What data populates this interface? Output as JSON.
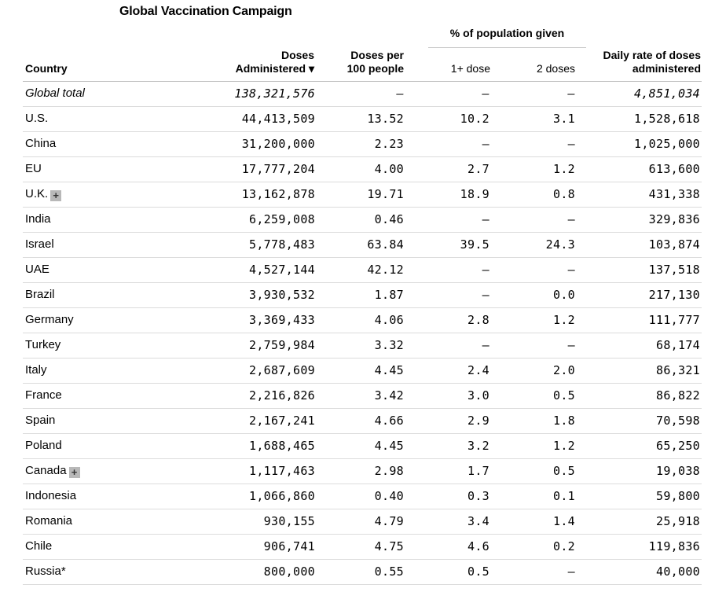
{
  "title": "Global Vaccination Campaign",
  "group_header": "% of population given",
  "columns": {
    "country": "Country",
    "doses_line1": "Doses",
    "doses_line2": "Administered ▾",
    "per100_line1": "Doses per",
    "per100_line2": "100 people",
    "one_dose": "1+ dose",
    "two_doses": "2 doses",
    "daily_line1": "Daily rate of doses",
    "daily_line2": "administered"
  },
  "expand_icon_glyph": "+",
  "rows": [
    {
      "country": "Global total",
      "doses": "138,321,576",
      "per100": "–",
      "one": "–",
      "two": "–",
      "daily": "4,851,034",
      "expandable": false
    },
    {
      "country": "U.S.",
      "doses": "44,413,509",
      "per100": "13.52",
      "one": "10.2",
      "two": "3.1",
      "daily": "1,528,618",
      "expandable": false
    },
    {
      "country": "China",
      "doses": "31,200,000",
      "per100": "2.23",
      "one": "–",
      "two": "–",
      "daily": "1,025,000",
      "expandable": false
    },
    {
      "country": "EU",
      "doses": "17,777,204",
      "per100": "4.00",
      "one": "2.7",
      "two": "1.2",
      "daily": "613,600",
      "expandable": false
    },
    {
      "country": "U.K.",
      "doses": "13,162,878",
      "per100": "19.71",
      "one": "18.9",
      "two": "0.8",
      "daily": "431,338",
      "expandable": true
    },
    {
      "country": "India",
      "doses": "6,259,008",
      "per100": "0.46",
      "one": "–",
      "two": "–",
      "daily": "329,836",
      "expandable": false
    },
    {
      "country": "Israel",
      "doses": "5,778,483",
      "per100": "63.84",
      "one": "39.5",
      "two": "24.3",
      "daily": "103,874",
      "expandable": false
    },
    {
      "country": "UAE",
      "doses": "4,527,144",
      "per100": "42.12",
      "one": "–",
      "two": "–",
      "daily": "137,518",
      "expandable": false
    },
    {
      "country": "Brazil",
      "doses": "3,930,532",
      "per100": "1.87",
      "one": "–",
      "two": "0.0",
      "daily": "217,130",
      "expandable": false
    },
    {
      "country": "Germany",
      "doses": "3,369,433",
      "per100": "4.06",
      "one": "2.8",
      "two": "1.2",
      "daily": "111,777",
      "expandable": false
    },
    {
      "country": "Turkey",
      "doses": "2,759,984",
      "per100": "3.32",
      "one": "–",
      "two": "–",
      "daily": "68,174",
      "expandable": false
    },
    {
      "country": "Italy",
      "doses": "2,687,609",
      "per100": "4.45",
      "one": "2.4",
      "two": "2.0",
      "daily": "86,321",
      "expandable": false
    },
    {
      "country": "France",
      "doses": "2,216,826",
      "per100": "3.42",
      "one": "3.0",
      "two": "0.5",
      "daily": "86,822",
      "expandable": false
    },
    {
      "country": "Spain",
      "doses": "2,167,241",
      "per100": "4.66",
      "one": "2.9",
      "two": "1.8",
      "daily": "70,598",
      "expandable": false
    },
    {
      "country": "Poland",
      "doses": "1,688,465",
      "per100": "4.45",
      "one": "3.2",
      "two": "1.2",
      "daily": "65,250",
      "expandable": false
    },
    {
      "country": "Canada",
      "doses": "1,117,463",
      "per100": "2.98",
      "one": "1.7",
      "two": "0.5",
      "daily": "19,038",
      "expandable": true
    },
    {
      "country": "Indonesia",
      "doses": "1,066,860",
      "per100": "0.40",
      "one": "0.3",
      "two": "0.1",
      "daily": "59,800",
      "expandable": false
    },
    {
      "country": "Romania",
      "doses": "930,155",
      "per100": "4.79",
      "one": "3.4",
      "two": "1.4",
      "daily": "25,918",
      "expandable": false
    },
    {
      "country": "Chile",
      "doses": "906,741",
      "per100": "4.75",
      "one": "4.6",
      "two": "0.2",
      "daily": "119,836",
      "expandable": false
    },
    {
      "country": "Russia*",
      "doses": "800,000",
      "per100": "0.55",
      "one": "0.5",
      "two": "–",
      "daily": "40,000",
      "expandable": false
    }
  ]
}
